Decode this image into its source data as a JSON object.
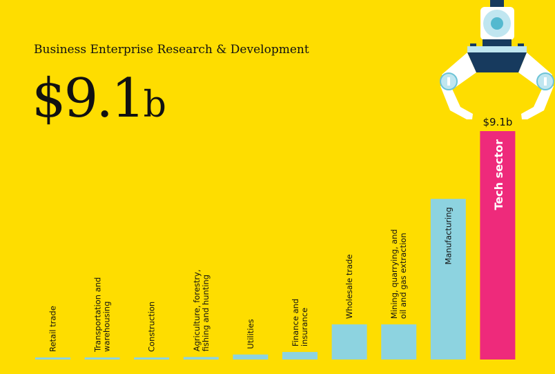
{
  "title": "Business Enterprise Research & Development",
  "total": {
    "prefix": "$9.1",
    "suffix": "b"
  },
  "colors": {
    "background": "#FEDD00",
    "bar": "#8DD3E0",
    "highlight": "#EE2A7B",
    "claw_dark": "#173A5E",
    "claw_light": "#C0E6F0",
    "claw_lens": "#54B9CF"
  },
  "icon": "robotic-claw-icon",
  "chart_data": {
    "type": "bar",
    "title": "Business Enterprise Research & Development",
    "categories": [
      [
        "Retail trade"
      ],
      [
        "Transportation and",
        "warehousing"
      ],
      [
        "Construction"
      ],
      [
        "Agriculture, forestry,",
        "fishing and hunting"
      ],
      [
        "Utilities"
      ],
      [
        "Finance and",
        "insurance"
      ],
      [
        "Wholesale trade"
      ],
      [
        "Mining, quarrying, and",
        "oil and gas extraction"
      ],
      [
        "Manufacturing"
      ],
      [
        "Tech sector"
      ]
    ],
    "values": [
      0.08,
      0.08,
      0.08,
      0.1,
      0.2,
      0.3,
      1.4,
      1.4,
      6.4,
      9.1
    ],
    "unit": "$b",
    "highlight_index": 9,
    "data_labels": {
      "9": "$9.1b"
    },
    "ylim": [
      0,
      9.1
    ],
    "grid": false
  }
}
